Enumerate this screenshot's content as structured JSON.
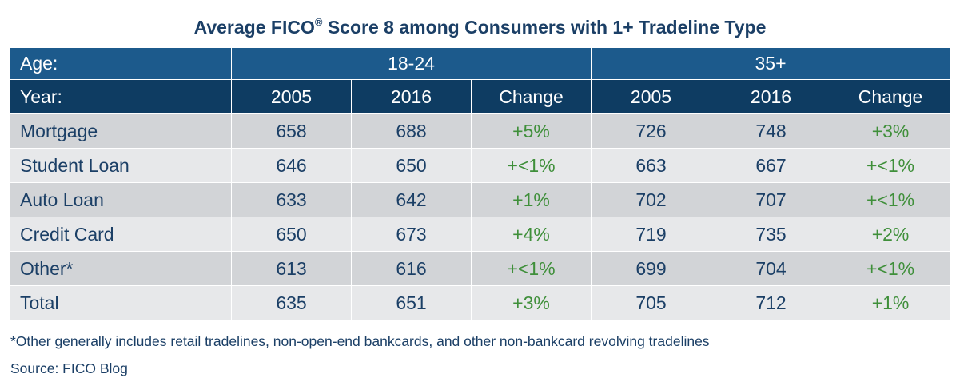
{
  "title": {
    "main": "Average FICO",
    "sup": "®",
    "rest": " Score 8 among Consumers with 1+ Tradeline Type"
  },
  "header": {
    "age_label": "Age:",
    "groups": [
      "18-24",
      "35+"
    ],
    "year_label": "Year:",
    "columns": [
      "2005",
      "2016",
      "Change",
      "2005",
      "2016",
      "Change"
    ]
  },
  "chart_data": {
    "type": "table",
    "title": "Average FICO® Score 8 among Consumers with 1+ Tradeline Type",
    "column_groups": [
      {
        "name": "18-24",
        "columns": [
          "2005",
          "2016",
          "Change"
        ]
      },
      {
        "name": "35+",
        "columns": [
          "2005",
          "2016",
          "Change"
        ]
      }
    ],
    "rows": [
      {
        "label": "Mortgage",
        "values": [
          "658",
          "688",
          "+5%",
          "726",
          "748",
          "+3%"
        ]
      },
      {
        "label": "Student Loan",
        "values": [
          "646",
          "650",
          "+<1%",
          "663",
          "667",
          "+<1%"
        ]
      },
      {
        "label": "Auto Loan",
        "values": [
          "633",
          "642",
          "+1%",
          "702",
          "707",
          "+<1%"
        ]
      },
      {
        "label": "Credit Card",
        "values": [
          "650",
          "673",
          "+4%",
          "719",
          "735",
          "+2%"
        ]
      },
      {
        "label": "Other*",
        "values": [
          "613",
          "616",
          "+<1%",
          "699",
          "704",
          "+<1%"
        ]
      },
      {
        "label": "Total",
        "values": [
          "635",
          "651",
          "+3%",
          "705",
          "712",
          "+1%"
        ]
      }
    ]
  },
  "colors": {
    "header_age": "#1c5a8c",
    "header_year": "#0e3c62",
    "text": "#1b3f66",
    "change": "#3f8f3a",
    "row_dark": "#d2d4d7",
    "row_light": "#e7e8ea"
  },
  "footnote": "*Other generally includes retail tradelines, non-open-end bankcards, and other non-bankcard revolving tradelines",
  "source": "Source: FICO Blog"
}
